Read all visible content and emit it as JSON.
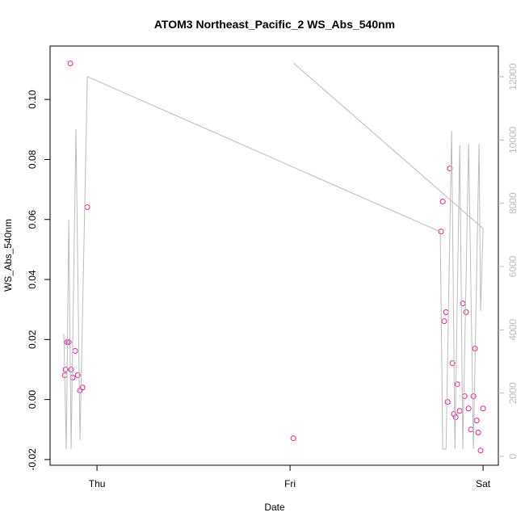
{
  "chart_data": {
    "type": "scatter",
    "title": "ATOM3 Northeast_Pacific_2 WS_Abs_540nm",
    "x_label": "Date",
    "y_label": "WS_Abs_540nm",
    "xlim": [
      -0.243,
      2.079
    ],
    "xticks": [
      {
        "value": 0,
        "label": "Thu"
      },
      {
        "value": 1,
        "label": "Fri"
      },
      {
        "value": 2,
        "label": "Sat"
      }
    ],
    "ylim": [
      -0.0219,
      0.1178
    ],
    "yticks": [
      -0.02,
      {
        "value": 0,
        "label": "0.00"
      },
      0.02,
      0.04,
      0.06,
      0.08,
      {
        "value": 0.1,
        "label": "0.10"
      }
    ],
    "y2lim": [
      -281,
      12971
    ],
    "y2ticks": [
      0,
      2000,
      4000,
      6000,
      8000,
      10000,
      12000
    ],
    "series": [
      {
        "color": "#e0209c",
        "x": [
          -0.167,
          -0.163,
          -0.155,
          -0.146,
          -0.138,
          -0.134,
          -0.126,
          -0.113,
          -0.1,
          -0.088,
          -0.075,
          -0.05,
          1.017,
          1.782,
          1.791,
          1.799,
          1.808,
          1.816,
          1.828,
          1.841,
          1.849,
          1.858,
          1.866,
          1.879,
          1.895,
          1.904,
          1.912,
          1.925,
          1.937,
          1.95,
          1.958,
          1.967,
          1.975,
          1.987,
          2.0
        ],
        "values": [
          0.0081,
          0.01,
          0.0191,
          0.0191,
          0.112,
          0.01,
          0.0073,
          0.0162,
          0.0081,
          0.003,
          0.004,
          0.0641,
          -0.0129,
          0.056,
          0.066,
          0.0261,
          0.0291,
          -0.0008,
          0.077,
          0.0121,
          -0.0048,
          -0.0059,
          0.0051,
          -0.0038,
          0.032,
          0.0011,
          0.0291,
          -0.003,
          -0.01,
          0.0011,
          0.017,
          -0.007,
          -0.011,
          -0.017,
          -0.003
        ]
      },
      {
        "type": "line",
        "axis": "y2",
        "color": "#bbbbbb",
        "x": [
          -0.172,
          -0.159,
          -0.146,
          -0.134,
          -0.109,
          -0.088,
          -0.05,
          1.778,
          1.791,
          1.808,
          1.837,
          1.854,
          1.879,
          1.895,
          1.925,
          1.95,
          1.979,
          1.987,
          2.0,
          1.017
        ],
        "values": [
          3882,
          230,
          7484,
          230,
          10345,
          511,
          12005,
          7100,
          230,
          230,
          10293,
          230,
          9833,
          230,
          9884,
          230,
          9884,
          4597,
          7202,
          12438
        ]
      }
    ]
  }
}
